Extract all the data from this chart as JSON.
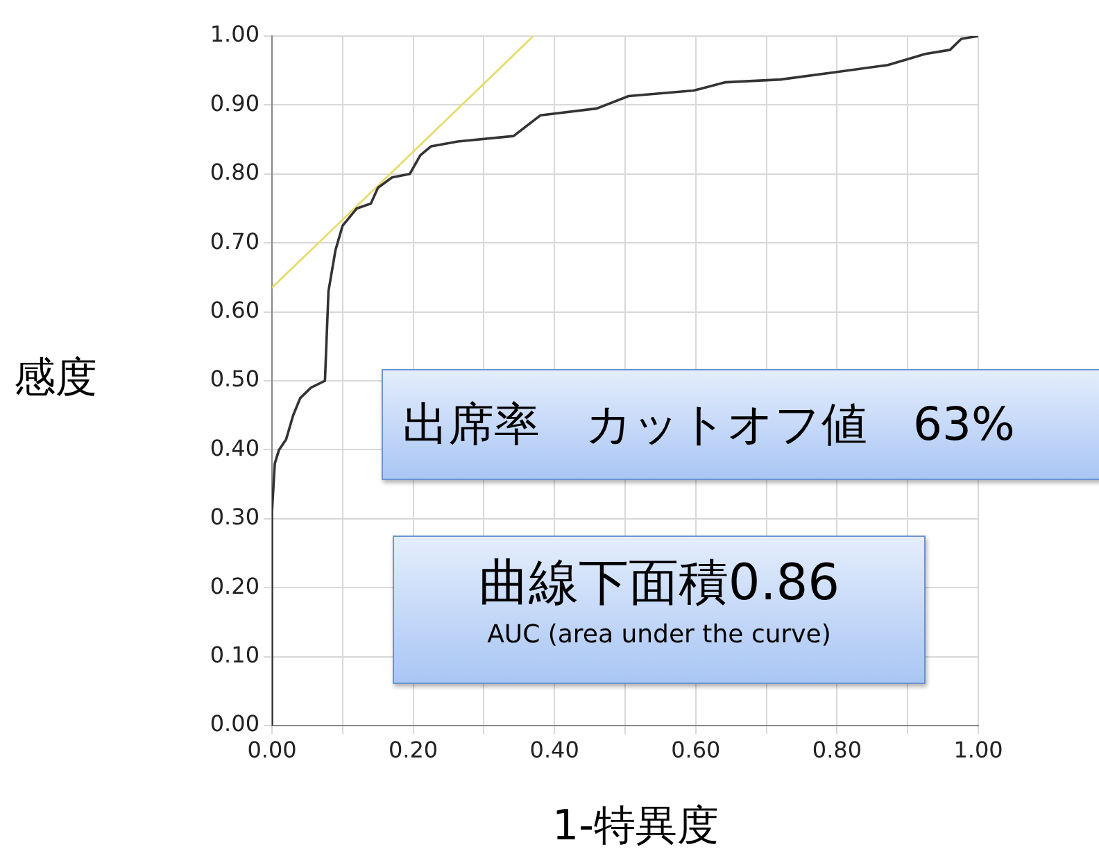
{
  "chart_data": {
    "type": "line",
    "xlabel": "1-特異度",
    "ylabel": "感度",
    "xlim": [
      0,
      1
    ],
    "ylim": [
      0,
      1
    ],
    "xticks": [
      {
        "value": 0,
        "label": "0.00"
      },
      {
        "value": 0.1,
        "label": null
      },
      {
        "value": 0.2,
        "label": "0.20"
      },
      {
        "value": 0.3,
        "label": null
      },
      {
        "value": 0.4,
        "label": "0.40"
      },
      {
        "value": 0.5,
        "label": null
      },
      {
        "value": 0.6,
        "label": "0.60"
      },
      {
        "value": 0.7,
        "label": null
      },
      {
        "value": 0.8,
        "label": "0.80"
      },
      {
        "value": 0.9,
        "label": null
      },
      {
        "value": 1,
        "label": "1.00"
      }
    ],
    "yticks": [
      {
        "value": 0,
        "label": "0.00"
      },
      {
        "value": 0.1,
        "label": "0.10"
      },
      {
        "value": 0.2,
        "label": "0.20"
      },
      {
        "value": 0.3,
        "label": "0.30"
      },
      {
        "value": 0.4,
        "label": "0.40"
      },
      {
        "value": 0.5,
        "label": "0.50"
      },
      {
        "value": 0.6,
        "label": "0.60"
      },
      {
        "value": 0.7,
        "label": "0.70"
      },
      {
        "value": 0.8,
        "label": "0.80"
      },
      {
        "value": 0.9,
        "label": "0.90"
      },
      {
        "value": 1,
        "label": "1.00"
      }
    ],
    "grid": true,
    "legend": false,
    "marker": "none",
    "line_style": "solid",
    "series": [
      {
        "color": "#333333",
        "x": [
          0,
          0,
          0.004,
          0.01,
          0.02,
          0.03,
          0.04,
          0.055,
          0.075,
          0.08,
          0.09,
          0.1,
          0.12,
          0.14,
          0.15,
          0.17,
          0.195,
          0.21,
          0.225,
          0.263,
          0.342,
          0.38,
          0.46,
          0.505,
          0.597,
          0.642,
          0.72,
          0.8,
          0.872,
          0.925,
          0.96,
          0.976,
          1
        ],
        "values": [
          0,
          0.31,
          0.38,
          0.4,
          0.415,
          0.45,
          0.475,
          0.49,
          0.5,
          0.63,
          0.69,
          0.725,
          0.75,
          0.757,
          0.78,
          0.795,
          0.8,
          0.827,
          0.84,
          0.847,
          0.855,
          0.885,
          0.895,
          0.913,
          0.921,
          0.933,
          0.937,
          0.948,
          0.958,
          0.974,
          0.98,
          0.996,
          1
        ]
      },
      {
        "color": "#e6dc6e",
        "x": [
          0,
          0.37
        ],
        "values": [
          0.635,
          1
        ]
      }
    ],
    "annotations": [
      "出席率　カットオフ値　63%",
      "曲線下面積0.86",
      "AUC (area under the curve)"
    ]
  }
}
